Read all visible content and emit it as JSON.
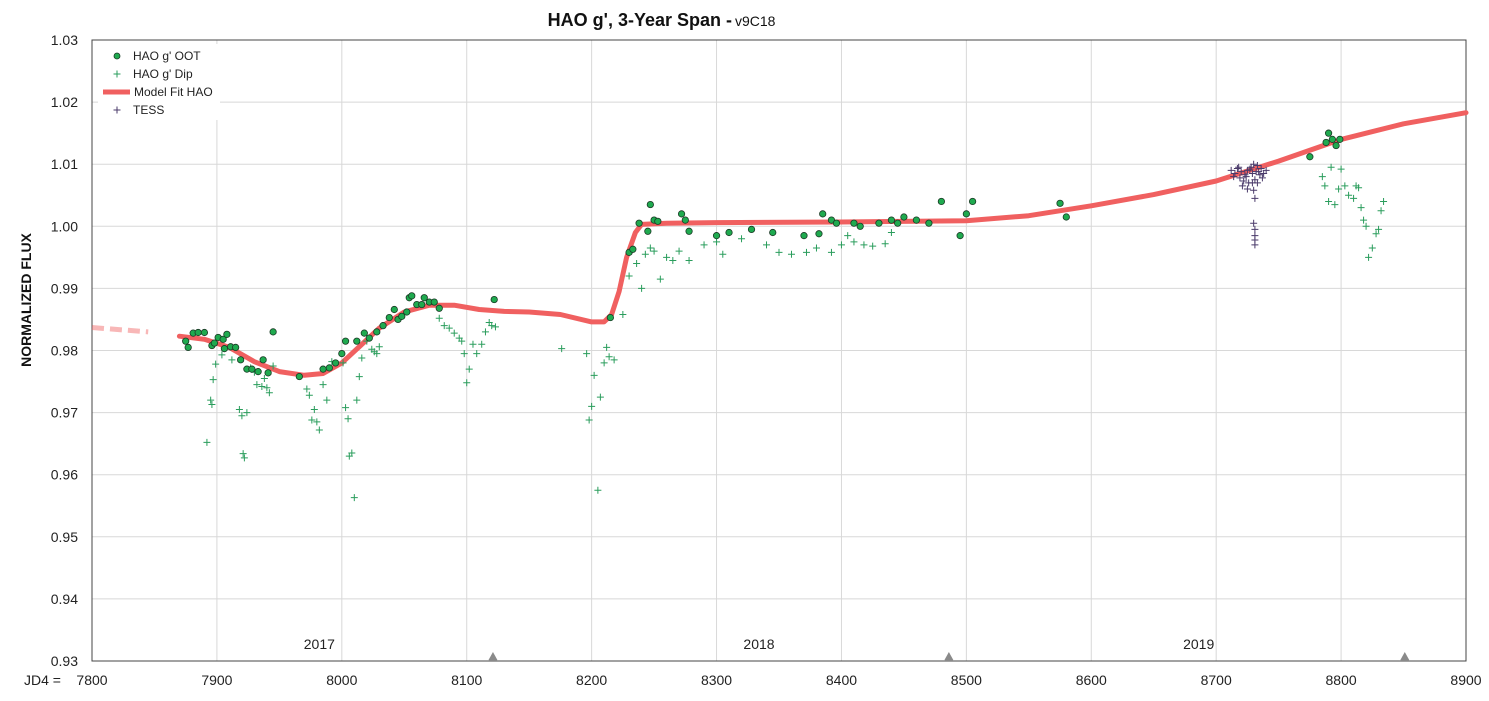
{
  "chart_data": {
    "type": "scatter",
    "title": "HAO g', 3-Year Span - ",
    "subtitle": "v9C18",
    "ylabel": "NORMALIZED FLUX",
    "xlabel_prefix": "JD4 =",
    "xlim": [
      7800,
      8900
    ],
    "ylim": [
      0.93,
      1.03
    ],
    "x_ticks": [
      "7800",
      "7900",
      "8000",
      "8100",
      "8200",
      "8300",
      "8400",
      "8500",
      "8600",
      "8700",
      "8800",
      "8900"
    ],
    "y_ticks": [
      "0.93",
      "0.94",
      "0.95",
      "0.96",
      "0.97",
      "0.98",
      "0.99",
      "1.00",
      "1.01",
      "1.02",
      "1.03"
    ],
    "grid": true,
    "legend_position": "top-left",
    "year_labels": [
      {
        "label": "2017",
        "x": 7982
      },
      {
        "label": "2018",
        "x": 8334
      },
      {
        "label": "2019",
        "x": 8686
      }
    ],
    "year_markers": [
      8121,
      8486,
      8851
    ],
    "colors": {
      "oot": "#1faa4f",
      "dip": "#2a9d5c",
      "fit": "#f06060",
      "tess": "#4a3a6a",
      "grid": "#d8d8d8",
      "marker": "#8a8a8a"
    },
    "series": [
      {
        "name": "HAO g' OOT",
        "marker": "circle",
        "points": [
          [
            7875,
            0.9815
          ],
          [
            7877,
            0.9805
          ],
          [
            7881,
            0.9828
          ],
          [
            7885,
            0.9829
          ],
          [
            7890,
            0.9829
          ],
          [
            7896,
            0.9808
          ],
          [
            7898,
            0.9812
          ],
          [
            7901,
            0.9821
          ],
          [
            7905,
            0.9818
          ],
          [
            7906,
            0.9803
          ],
          [
            7908,
            0.9826
          ],
          [
            7911,
            0.9806
          ],
          [
            7915,
            0.9805
          ],
          [
            7919,
            0.9785
          ],
          [
            7924,
            0.977
          ],
          [
            7928,
            0.977
          ],
          [
            7933,
            0.9766
          ],
          [
            7937,
            0.9785
          ],
          [
            7941,
            0.9764
          ],
          [
            7945,
            0.983
          ],
          [
            7966,
            0.9758
          ],
          [
            7985,
            0.977
          ],
          [
            7990,
            0.9772
          ],
          [
            7995,
            0.978
          ],
          [
            8000,
            0.9795
          ],
          [
            8003,
            0.9815
          ],
          [
            8012,
            0.9815
          ],
          [
            8018,
            0.9828
          ],
          [
            8022,
            0.982
          ],
          [
            8028,
            0.983
          ],
          [
            8033,
            0.984
          ],
          [
            8038,
            0.9853
          ],
          [
            8042,
            0.9866
          ],
          [
            8045,
            0.985
          ],
          [
            8048,
            0.9855
          ],
          [
            8052,
            0.9862
          ],
          [
            8054,
            0.9885
          ],
          [
            8056,
            0.9888
          ],
          [
            8060,
            0.9874
          ],
          [
            8064,
            0.9874
          ],
          [
            8066,
            0.9885
          ],
          [
            8070,
            0.9878
          ],
          [
            8074,
            0.9878
          ],
          [
            8078,
            0.9868
          ],
          [
            8122,
            0.9882
          ],
          [
            8215,
            0.9853
          ],
          [
            8230,
            0.9958
          ],
          [
            8233,
            0.9963
          ],
          [
            8238,
            1.0005
          ],
          [
            8245,
            0.9992
          ],
          [
            8247,
            1.0035
          ],
          [
            8250,
            1.001
          ],
          [
            8253,
            1.0008
          ],
          [
            8272,
            1.002
          ],
          [
            8275,
            1.001
          ],
          [
            8278,
            0.9992
          ],
          [
            8300,
            0.9985
          ],
          [
            8310,
            0.999
          ],
          [
            8328,
            0.9995
          ],
          [
            8345,
            0.999
          ],
          [
            8370,
            0.9985
          ],
          [
            8382,
            0.9988
          ],
          [
            8385,
            1.002
          ],
          [
            8392,
            1.001
          ],
          [
            8396,
            1.0005
          ],
          [
            8410,
            1.0005
          ],
          [
            8415,
            1.0
          ],
          [
            8430,
            1.0005
          ],
          [
            8440,
            1.001
          ],
          [
            8445,
            1.0005
          ],
          [
            8450,
            1.0015
          ],
          [
            8460,
            1.001
          ],
          [
            8470,
            1.0005
          ],
          [
            8480,
            1.004
          ],
          [
            8495,
            0.9985
          ],
          [
            8500,
            1.002
          ],
          [
            8505,
            1.004
          ],
          [
            8575,
            1.0037
          ],
          [
            8580,
            1.0015
          ],
          [
            8775,
            1.0112
          ],
          [
            8788,
            1.0135
          ],
          [
            8790,
            1.015
          ],
          [
            8793,
            1.014
          ],
          [
            8796,
            1.013
          ],
          [
            8799,
            1.014
          ]
        ]
      },
      {
        "name": "HAO g' Dip",
        "marker": "plus",
        "points": [
          [
            7892,
            0.9652
          ],
          [
            7895,
            0.972
          ],
          [
            7896,
            0.9713
          ],
          [
            7897,
            0.9753
          ],
          [
            7899,
            0.9778
          ],
          [
            7904,
            0.9793
          ],
          [
            7912,
            0.9785
          ],
          [
            7918,
            0.9705
          ],
          [
            7920,
            0.9695
          ],
          [
            7921,
            0.9634
          ],
          [
            7922,
            0.9627
          ],
          [
            7924,
            0.97
          ],
          [
            7927,
            0.9772
          ],
          [
            7930,
            0.9765
          ],
          [
            7932,
            0.9745
          ],
          [
            7936,
            0.9742
          ],
          [
            7938,
            0.9755
          ],
          [
            7940,
            0.974
          ],
          [
            7942,
            0.9732
          ],
          [
            7945,
            0.9775
          ],
          [
            7972,
            0.9738
          ],
          [
            7974,
            0.9728
          ],
          [
            7976,
            0.9688
          ],
          [
            7978,
            0.9705
          ],
          [
            7980,
            0.9685
          ],
          [
            7982,
            0.9672
          ],
          [
            7985,
            0.9745
          ],
          [
            7988,
            0.972
          ],
          [
            7992,
            0.9782
          ],
          [
            8001,
            0.978
          ],
          [
            8003,
            0.9708
          ],
          [
            8005,
            0.969
          ],
          [
            8006,
            0.963
          ],
          [
            8008,
            0.9635
          ],
          [
            8010,
            0.9563
          ],
          [
            8012,
            0.972
          ],
          [
            8014,
            0.9758
          ],
          [
            8016,
            0.9788
          ],
          [
            8020,
            0.9815
          ],
          [
            8024,
            0.9802
          ],
          [
            8026,
            0.9798
          ],
          [
            8028,
            0.9795
          ],
          [
            8030,
            0.9806
          ],
          [
            8078,
            0.9852
          ],
          [
            8082,
            0.984
          ],
          [
            8086,
            0.9836
          ],
          [
            8090,
            0.9828
          ],
          [
            8094,
            0.982
          ],
          [
            8096,
            0.9815
          ],
          [
            8098,
            0.9795
          ],
          [
            8100,
            0.9748
          ],
          [
            8102,
            0.977
          ],
          [
            8105,
            0.981
          ],
          [
            8108,
            0.9795
          ],
          [
            8112,
            0.981
          ],
          [
            8115,
            0.983
          ],
          [
            8118,
            0.9845
          ],
          [
            8120,
            0.984
          ],
          [
            8123,
            0.9838
          ],
          [
            8176,
            0.9803
          ],
          [
            8196,
            0.9795
          ],
          [
            8198,
            0.9688
          ],
          [
            8200,
            0.971
          ],
          [
            8202,
            0.976
          ],
          [
            8205,
            0.9575
          ],
          [
            8207,
            0.9725
          ],
          [
            8210,
            0.978
          ],
          [
            8212,
            0.9805
          ],
          [
            8214,
            0.979
          ],
          [
            8218,
            0.9785
          ],
          [
            8225,
            0.9858
          ],
          [
            8230,
            0.992
          ],
          [
            8236,
            0.994
          ],
          [
            8240,
            0.99
          ],
          [
            8243,
            0.9955
          ],
          [
            8247,
            0.9965
          ],
          [
            8250,
            0.996
          ],
          [
            8255,
            0.9915
          ],
          [
            8260,
            0.995
          ],
          [
            8265,
            0.9945
          ],
          [
            8270,
            0.996
          ],
          [
            8278,
            0.9945
          ],
          [
            8290,
            0.997
          ],
          [
            8300,
            0.9975
          ],
          [
            8305,
            0.9955
          ],
          [
            8320,
            0.998
          ],
          [
            8340,
            0.997
          ],
          [
            8350,
            0.9958
          ],
          [
            8360,
            0.9955
          ],
          [
            8372,
            0.9958
          ],
          [
            8380,
            0.9965
          ],
          [
            8392,
            0.9958
          ],
          [
            8400,
            0.997
          ],
          [
            8405,
            0.9985
          ],
          [
            8410,
            0.9975
          ],
          [
            8418,
            0.997
          ],
          [
            8425,
            0.9968
          ],
          [
            8435,
            0.9972
          ],
          [
            8440,
            0.999
          ],
          [
            8785,
            1.008
          ],
          [
            8787,
            1.0065
          ],
          [
            8790,
            1.004
          ],
          [
            8792,
            1.0095
          ],
          [
            8795,
            1.0035
          ],
          [
            8798,
            1.006
          ],
          [
            8800,
            1.0092
          ],
          [
            8803,
            1.0065
          ],
          [
            8806,
            1.005
          ],
          [
            8810,
            1.0045
          ],
          [
            8812,
            1.0065
          ],
          [
            8814,
            1.0062
          ],
          [
            8816,
            1.003
          ],
          [
            8818,
            1.001
          ],
          [
            8820,
            1.0
          ],
          [
            8822,
            0.995
          ],
          [
            8825,
            0.9965
          ],
          [
            8828,
            0.9988
          ],
          [
            8830,
            0.9995
          ],
          [
            8832,
            1.0025
          ],
          [
            8834,
            1.004
          ]
        ]
      },
      {
        "name": "Model Fit HAO",
        "marker": "line",
        "dashed_segment": [
          [
            7800,
            0.9837
          ],
          [
            7845,
            0.983
          ]
        ],
        "points": [
          [
            7870,
            0.9823
          ],
          [
            7890,
            0.9818
          ],
          [
            7910,
            0.9805
          ],
          [
            7930,
            0.9782
          ],
          [
            7950,
            0.9766
          ],
          [
            7970,
            0.976
          ],
          [
            7985,
            0.9763
          ],
          [
            8000,
            0.978
          ],
          [
            8015,
            0.9808
          ],
          [
            8030,
            0.9836
          ],
          [
            8050,
            0.9862
          ],
          [
            8070,
            0.9873
          ],
          [
            8090,
            0.9873
          ],
          [
            8110,
            0.9866
          ],
          [
            8130,
            0.9863
          ],
          [
            8150,
            0.9862
          ],
          [
            8175,
            0.9858
          ],
          [
            8200,
            0.9846
          ],
          [
            8210,
            0.9846
          ],
          [
            8216,
            0.9858
          ],
          [
            8222,
            0.9895
          ],
          [
            8228,
            0.995
          ],
          [
            8235,
            0.999
          ],
          [
            8240,
            1.0003
          ],
          [
            8260,
            1.0005
          ],
          [
            8300,
            1.0006
          ],
          [
            8400,
            1.0007
          ],
          [
            8500,
            1.0009
          ],
          [
            8550,
            1.0017
          ],
          [
            8600,
            1.0033
          ],
          [
            8650,
            1.0051
          ],
          [
            8700,
            1.0073
          ],
          [
            8750,
            1.0105
          ],
          [
            8800,
            1.014
          ],
          [
            8850,
            1.0165
          ],
          [
            8900,
            1.0183
          ]
        ]
      },
      {
        "name": "TESS",
        "marker": "plus",
        "points": [
          [
            8712,
            1.009
          ],
          [
            8715,
            1.0085
          ],
          [
            8717,
            1.0093
          ],
          [
            8719,
            1.0078
          ],
          [
            8720,
            1.0088
          ],
          [
            8722,
            1.0073
          ],
          [
            8723,
            1.0083
          ],
          [
            8725,
            1.009
          ],
          [
            8726,
            1.007
          ],
          [
            8728,
            1.0095
          ],
          [
            8729,
            1.0085
          ],
          [
            8730,
            1.01
          ],
          [
            8731,
            1.0075
          ],
          [
            8733,
            1.0098
          ],
          [
            8734,
            1.0088
          ],
          [
            8735,
            1.0083
          ],
          [
            8736,
            1.0093
          ],
          [
            8738,
            1.0085
          ],
          [
            8740,
            1.009
          ],
          [
            8714,
            1.008
          ],
          [
            8718,
            1.0095
          ],
          [
            8724,
            1.008
          ],
          [
            8727,
            1.0092
          ],
          [
            8732,
            1.0088
          ],
          [
            8737,
            1.0078
          ],
          [
            8721,
            1.0065
          ],
          [
            8725,
            1.006
          ],
          [
            8730,
            1.0058
          ],
          [
            8731,
            1.0045
          ],
          [
            8730,
            1.0005
          ],
          [
            8731,
            0.9995
          ],
          [
            8731,
            0.9985
          ],
          [
            8731,
            0.9978
          ],
          [
            8731,
            0.997
          ],
          [
            8729,
            1.007
          ],
          [
            8733,
            1.007
          ]
        ]
      }
    ]
  }
}
